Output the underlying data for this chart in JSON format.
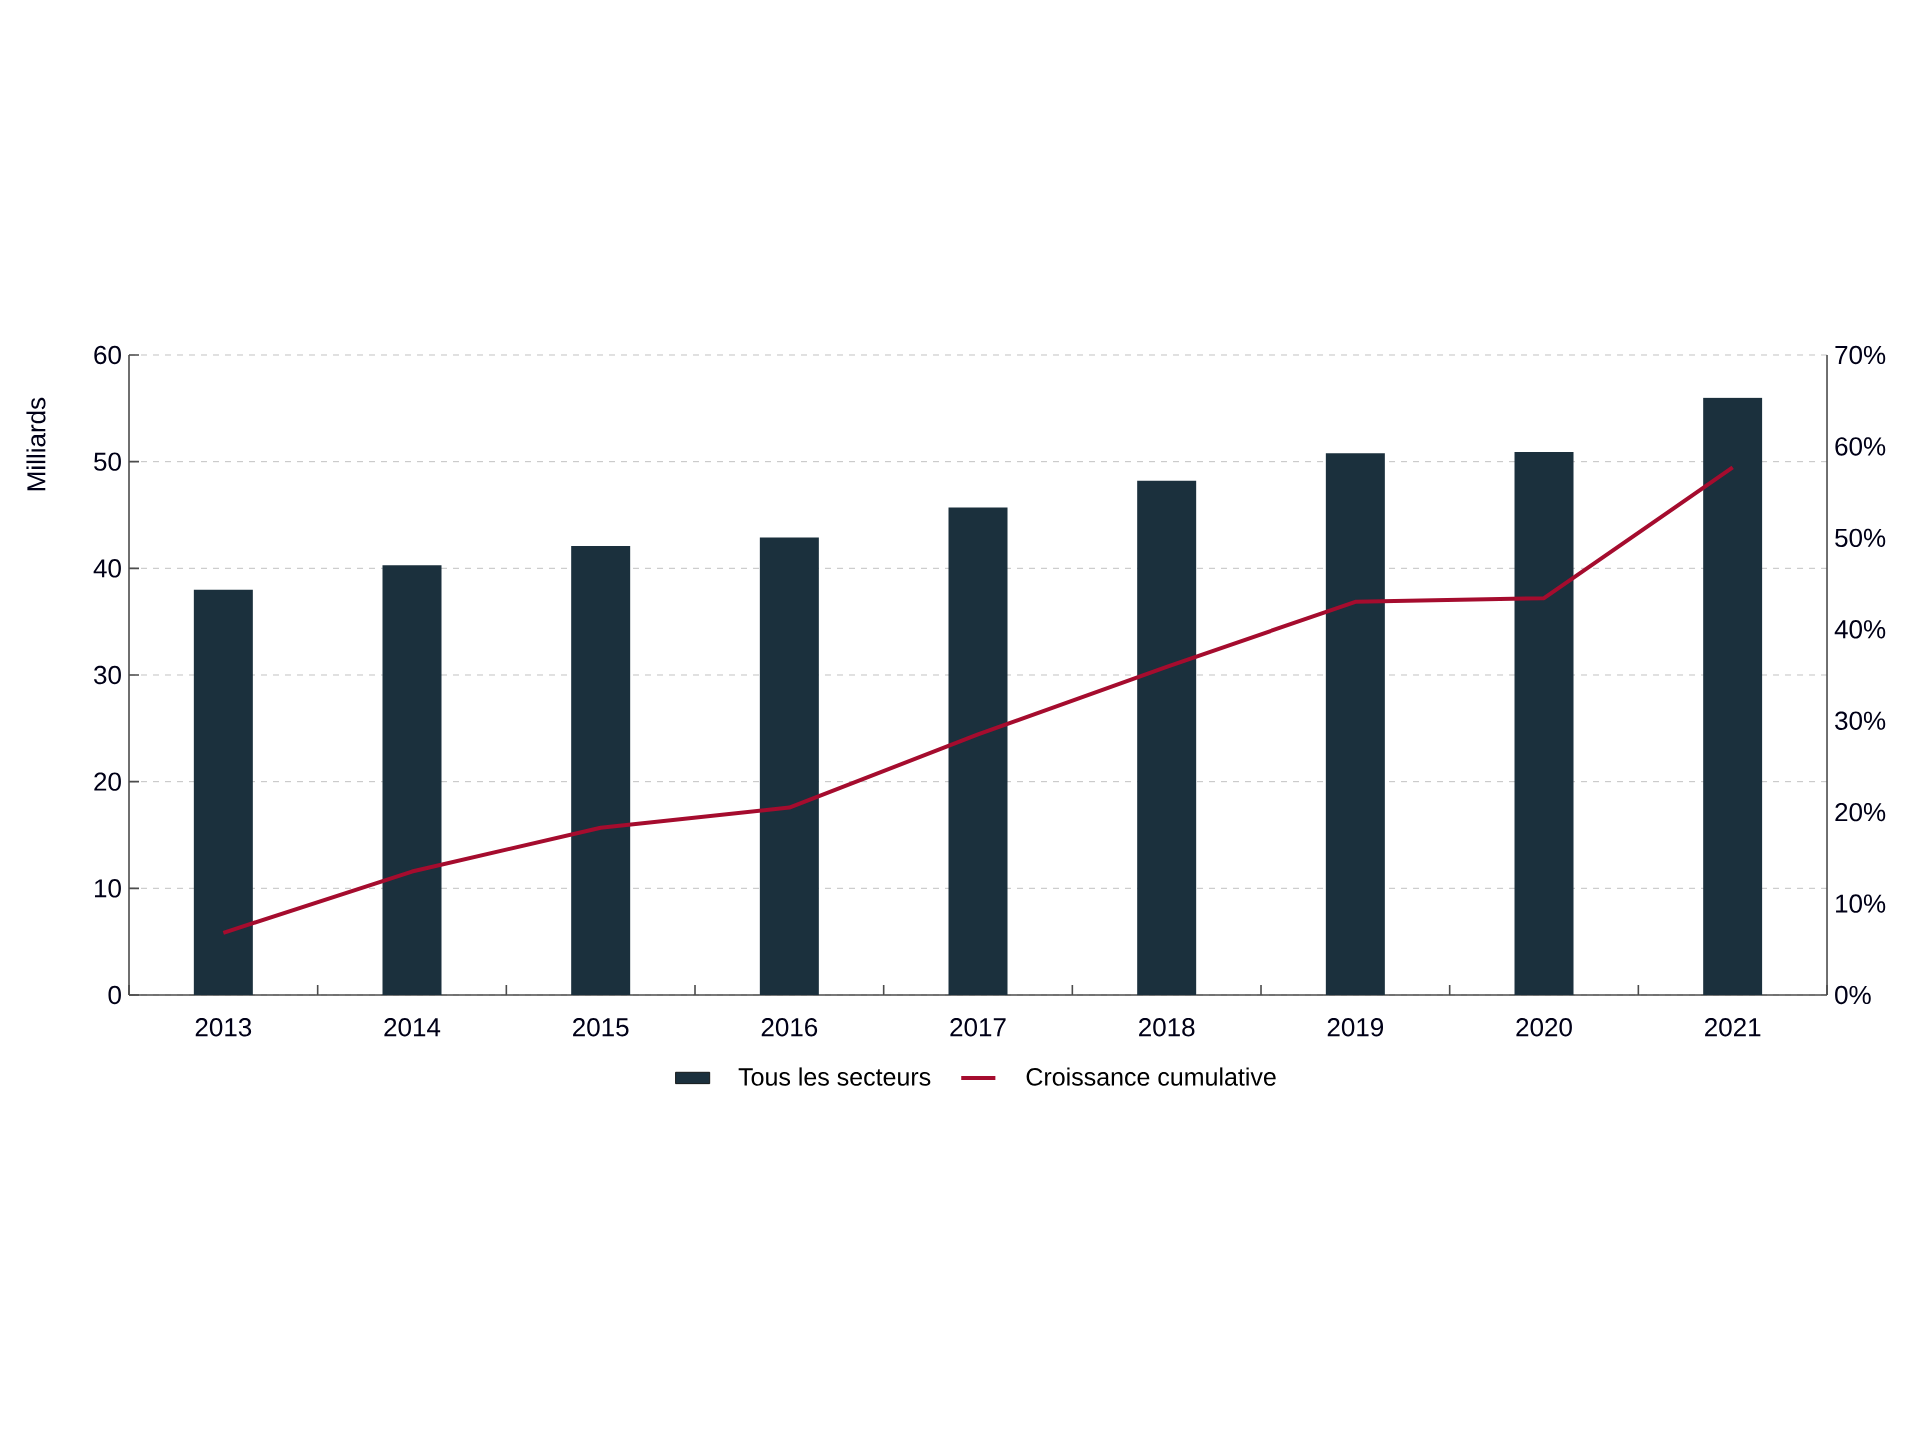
{
  "chart_data": {
    "type": "bar",
    "ylabel": "Milliards",
    "categories": [
      "2013",
      "2014",
      "2015",
      "2016",
      "2017",
      "2018",
      "2019",
      "2020",
      "2021"
    ],
    "series": [
      {
        "name": "Tous les secteurs",
        "color": "#1b303d",
        "values": [
          38.0,
          40.3,
          42.1,
          42.9,
          45.7,
          48.2,
          50.8,
          50.9,
          56.0
        ]
      },
      {
        "name": "Croissance cumulative",
        "type": "line",
        "axis": "y2",
        "color": "#a50c2e",
        "values": [
          6.8,
          13.5,
          18.3,
          20.5,
          28.5,
          35.9,
          43.0,
          43.4,
          57.7
        ]
      }
    ],
    "ylim": [
      0,
      60
    ],
    "yticks": [
      0,
      10,
      20,
      30,
      40,
      50,
      60
    ],
    "y2lim": [
      0,
      70
    ],
    "y2ticks": [
      {
        "value": 0,
        "label": "0%"
      },
      {
        "value": 10,
        "label": "10%"
      },
      {
        "value": 20,
        "label": "20%"
      },
      {
        "value": 30,
        "label": "30%"
      },
      {
        "value": 40,
        "label": "40%"
      },
      {
        "value": 50,
        "label": "50%"
      },
      {
        "value": 60,
        "label": "60%"
      },
      {
        "value": 70,
        "label": "70%"
      }
    ],
    "grid": "y",
    "legend": "bottom"
  }
}
